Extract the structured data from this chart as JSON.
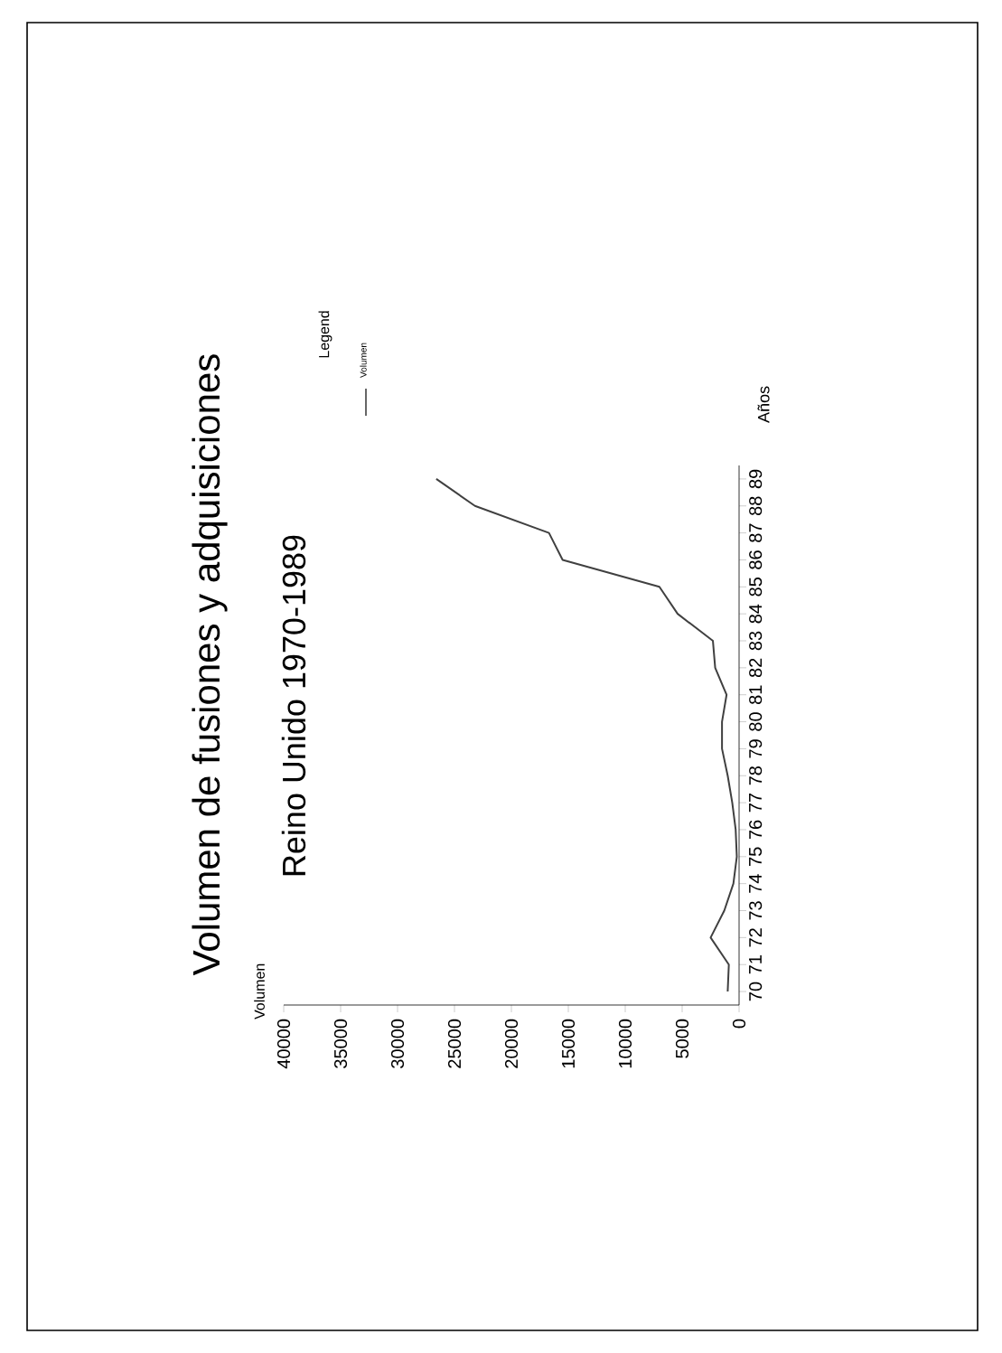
{
  "chart_data": {
    "type": "line",
    "title": "Volumen de fusiones y adquisiciones",
    "subtitle": "Reino Unido 1970-1989",
    "annotations": [
      "Volumen"
    ],
    "ylabel": "Años",
    "legend_title": "Legend",
    "legend": "top left",
    "line_style": "solid",
    "series": [
      {
        "name": "Volumen",
        "color": "#404040",
        "x": [
          1000,
          900,
          2500,
          1300,
          500,
          200,
          300,
          600,
          1000,
          1500,
          1500,
          1100,
          2100,
          2300,
          5400,
          7000,
          15500,
          16700,
          23200,
          26600
        ],
        "values": [
          70,
          71,
          72,
          73,
          74,
          75,
          76,
          77,
          78,
          79,
          80,
          81,
          82,
          83,
          84,
          85,
          86,
          87,
          88,
          89
        ]
      }
    ],
    "xlim": [
      40000,
      0
    ],
    "xticks": [
      0,
      5000,
      10000,
      15000,
      20000,
      25000,
      30000,
      35000,
      40000
    ],
    "ylim": [
      69.5,
      89.5
    ],
    "yticks": [
      70,
      71,
      72,
      73,
      74,
      75,
      76,
      77,
      78,
      79,
      80,
      81,
      82,
      83,
      84,
      85,
      86,
      87,
      88,
      89
    ]
  }
}
